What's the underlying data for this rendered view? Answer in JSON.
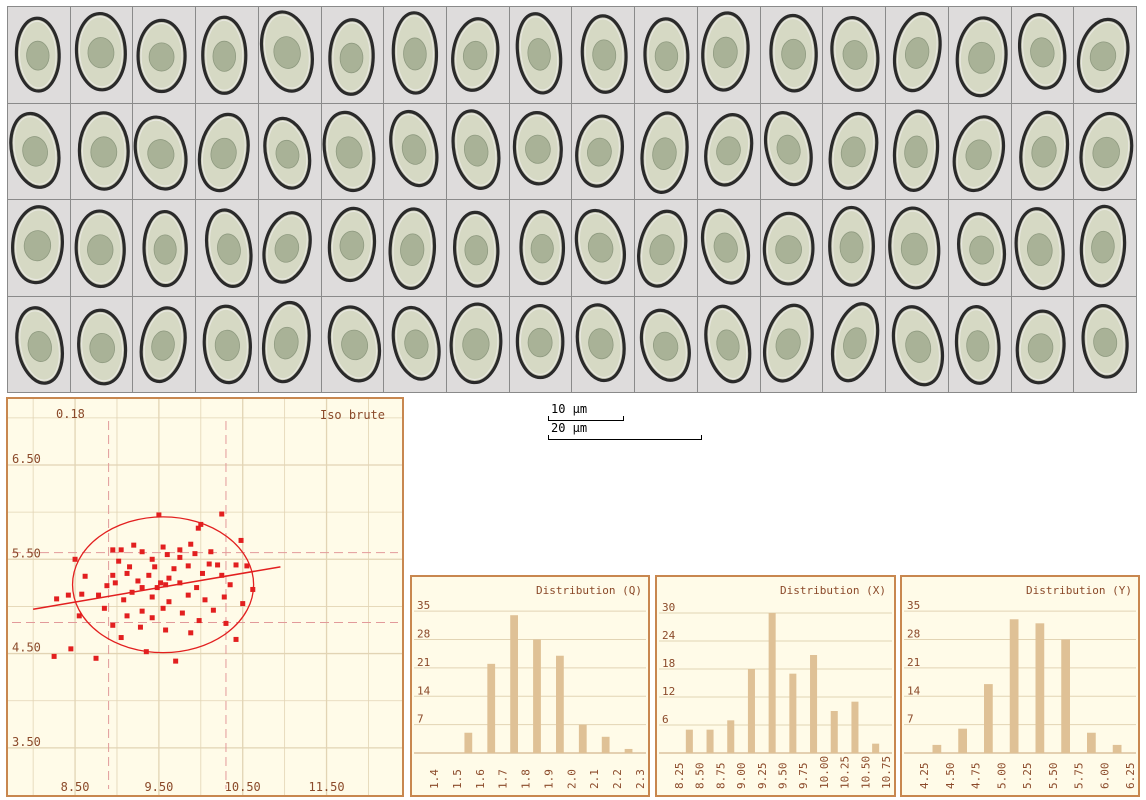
{
  "scatter": {
    "corner_value": "0.18",
    "title": "Iso brute",
    "x_ticks": [
      "8.50",
      "9.50",
      "10.50",
      "11.50"
    ],
    "y_ticks": [
      "6.50",
      "5.50",
      "4.50",
      "3.50"
    ]
  },
  "scale_bars": [
    {
      "label": "10 µm",
      "length_um": 10
    },
    {
      "label": "20 µm",
      "length_um": 20
    }
  ],
  "histograms": [
    {
      "title": "Distribution (Q)"
    },
    {
      "title": "Distribution (X)"
    },
    {
      "title": "Distribution (Y)"
    }
  ],
  "spore_grid": {
    "rows": 4,
    "columns": 18
  },
  "colors": {
    "panel_border": "#c8874f",
    "panel_bg": "#fffbe8",
    "points": "#e21f1f",
    "bars": "#dfc196",
    "grid": "#e2d4b4"
  },
  "chart_data": [
    {
      "type": "scatter",
      "title": "Iso brute",
      "annotation": "0.18",
      "xlim": [
        7.7,
        12.4
      ],
      "ylim": [
        3.0,
        7.2
      ],
      "x_ticks": [
        8.5,
        9.5,
        10.5,
        11.5
      ],
      "y_ticks": [
        6.5,
        5.5,
        4.5,
        3.5
      ],
      "mean_lines": {
        "x": [
          8.9,
          10.3
        ],
        "y": [
          5.57,
          4.83
        ]
      },
      "ellipse": {
        "cx": 9.55,
        "cy": 5.23,
        "rx": 1.08,
        "ry": 0.72
      },
      "regression": {
        "x": [
          8.0,
          10.95
        ],
        "y": [
          4.97,
          5.42
        ]
      },
      "points": [
        [
          10.25,
          5.98
        ],
        [
          9.5,
          5.97
        ],
        [
          10.0,
          5.87
        ],
        [
          9.97,
          5.83
        ],
        [
          10.48,
          5.7
        ],
        [
          9.2,
          5.65
        ],
        [
          9.88,
          5.66
        ],
        [
          8.95,
          5.6
        ],
        [
          9.05,
          5.6
        ],
        [
          9.55,
          5.63
        ],
        [
          9.93,
          5.56
        ],
        [
          9.3,
          5.58
        ],
        [
          9.6,
          5.55
        ],
        [
          9.75,
          5.52
        ],
        [
          8.5,
          5.5
        ],
        [
          9.02,
          5.48
        ],
        [
          9.42,
          5.5
        ],
        [
          10.1,
          5.45
        ],
        [
          10.2,
          5.44
        ],
        [
          10.42,
          5.44
        ],
        [
          9.15,
          5.42
        ],
        [
          9.45,
          5.42
        ],
        [
          9.68,
          5.4
        ],
        [
          9.85,
          5.43
        ],
        [
          10.55,
          5.43
        ],
        [
          8.62,
          5.32
        ],
        [
          8.95,
          5.33
        ],
        [
          9.12,
          5.35
        ],
        [
          9.38,
          5.33
        ],
        [
          9.62,
          5.3
        ],
        [
          10.02,
          5.35
        ],
        [
          10.25,
          5.33
        ],
        [
          9.25,
          5.27
        ],
        [
          9.52,
          5.25
        ],
        [
          9.75,
          5.25
        ],
        [
          10.35,
          5.23
        ],
        [
          8.88,
          5.22
        ],
        [
          9.3,
          5.2
        ],
        [
          9.48,
          5.2
        ],
        [
          9.58,
          5.23
        ],
        [
          9.95,
          5.2
        ],
        [
          10.62,
          5.18
        ],
        [
          8.42,
          5.12
        ],
        [
          8.58,
          5.13
        ],
        [
          8.78,
          5.12
        ],
        [
          9.18,
          5.15
        ],
        [
          9.42,
          5.1
        ],
        [
          9.85,
          5.12
        ],
        [
          10.28,
          5.1
        ],
        [
          8.28,
          5.08
        ],
        [
          9.08,
          5.07
        ],
        [
          9.62,
          5.05
        ],
        [
          10.05,
          5.07
        ],
        [
          10.5,
          5.03
        ],
        [
          8.85,
          4.98
        ],
        [
          9.3,
          4.95
        ],
        [
          9.55,
          4.98
        ],
        [
          9.78,
          4.93
        ],
        [
          10.15,
          4.96
        ],
        [
          8.55,
          4.9
        ],
        [
          9.12,
          4.9
        ],
        [
          9.42,
          4.88
        ],
        [
          9.98,
          4.85
        ],
        [
          10.3,
          4.82
        ],
        [
          8.95,
          4.8
        ],
        [
          9.28,
          4.78
        ],
        [
          9.58,
          4.75
        ],
        [
          9.88,
          4.72
        ],
        [
          10.42,
          4.65
        ],
        [
          9.05,
          4.67
        ],
        [
          8.45,
          4.55
        ],
        [
          8.25,
          4.47
        ],
        [
          9.35,
          4.52
        ],
        [
          9.7,
          4.42
        ],
        [
          8.75,
          4.45
        ],
        [
          9.75,
          5.6
        ],
        [
          8.98,
          5.25
        ],
        [
          10.12,
          5.58
        ]
      ]
    },
    {
      "type": "bar",
      "title": "Distribution (Q)",
      "categories": [
        "1.4",
        "1.5",
        "1.6",
        "1.7",
        "1.8",
        "1.9",
        "2.0",
        "2.1",
        "2.2",
        "2.3"
      ],
      "bars": [
        {
          "x": 1.55,
          "value": 5
        },
        {
          "x": 1.65,
          "value": 22
        },
        {
          "x": 1.75,
          "value": 34
        },
        {
          "x": 1.85,
          "value": 28
        },
        {
          "x": 1.95,
          "value": 24
        },
        {
          "x": 2.05,
          "value": 7
        },
        {
          "x": 2.15,
          "value": 4
        },
        {
          "x": 2.25,
          "value": 1
        }
      ],
      "y_ticks": [
        7,
        14,
        21,
        28,
        35
      ],
      "ylim": [
        0,
        38
      ]
    },
    {
      "type": "bar",
      "title": "Distribution (X)",
      "categories": [
        "8.25",
        "8.50",
        "8.75",
        "9.00",
        "9.25",
        "9.50",
        "9.75",
        "10.00",
        "10.25",
        "10.50",
        "10.75"
      ],
      "bars": [
        {
          "x": 8.375,
          "value": 5
        },
        {
          "x": 8.625,
          "value": 5
        },
        {
          "x": 8.875,
          "value": 7
        },
        {
          "x": 9.125,
          "value": 18
        },
        {
          "x": 9.375,
          "value": 30
        },
        {
          "x": 9.625,
          "value": 17
        },
        {
          "x": 9.875,
          "value": 21
        },
        {
          "x": 10.125,
          "value": 9
        },
        {
          "x": 10.375,
          "value": 11
        },
        {
          "x": 10.625,
          "value": 2
        }
      ],
      "y_ticks": [
        6,
        12,
        18,
        24,
        30
      ],
      "ylim": [
        0,
        33
      ]
    },
    {
      "type": "bar",
      "title": "Distribution (Y)",
      "categories": [
        "4.25",
        "4.50",
        "4.75",
        "5.00",
        "5.25",
        "5.50",
        "5.75",
        "6.00",
        "6.25"
      ],
      "bars": [
        {
          "x": 4.375,
          "value": 2
        },
        {
          "x": 4.625,
          "value": 6
        },
        {
          "x": 4.875,
          "value": 17
        },
        {
          "x": 5.125,
          "value": 33
        },
        {
          "x": 5.375,
          "value": 32
        },
        {
          "x": 5.625,
          "value": 28
        },
        {
          "x": 5.875,
          "value": 5
        },
        {
          "x": 6.125,
          "value": 2
        }
      ],
      "y_ticks": [
        7,
        14,
        21,
        28,
        35
      ],
      "ylim": [
        0,
        38
      ]
    }
  ]
}
